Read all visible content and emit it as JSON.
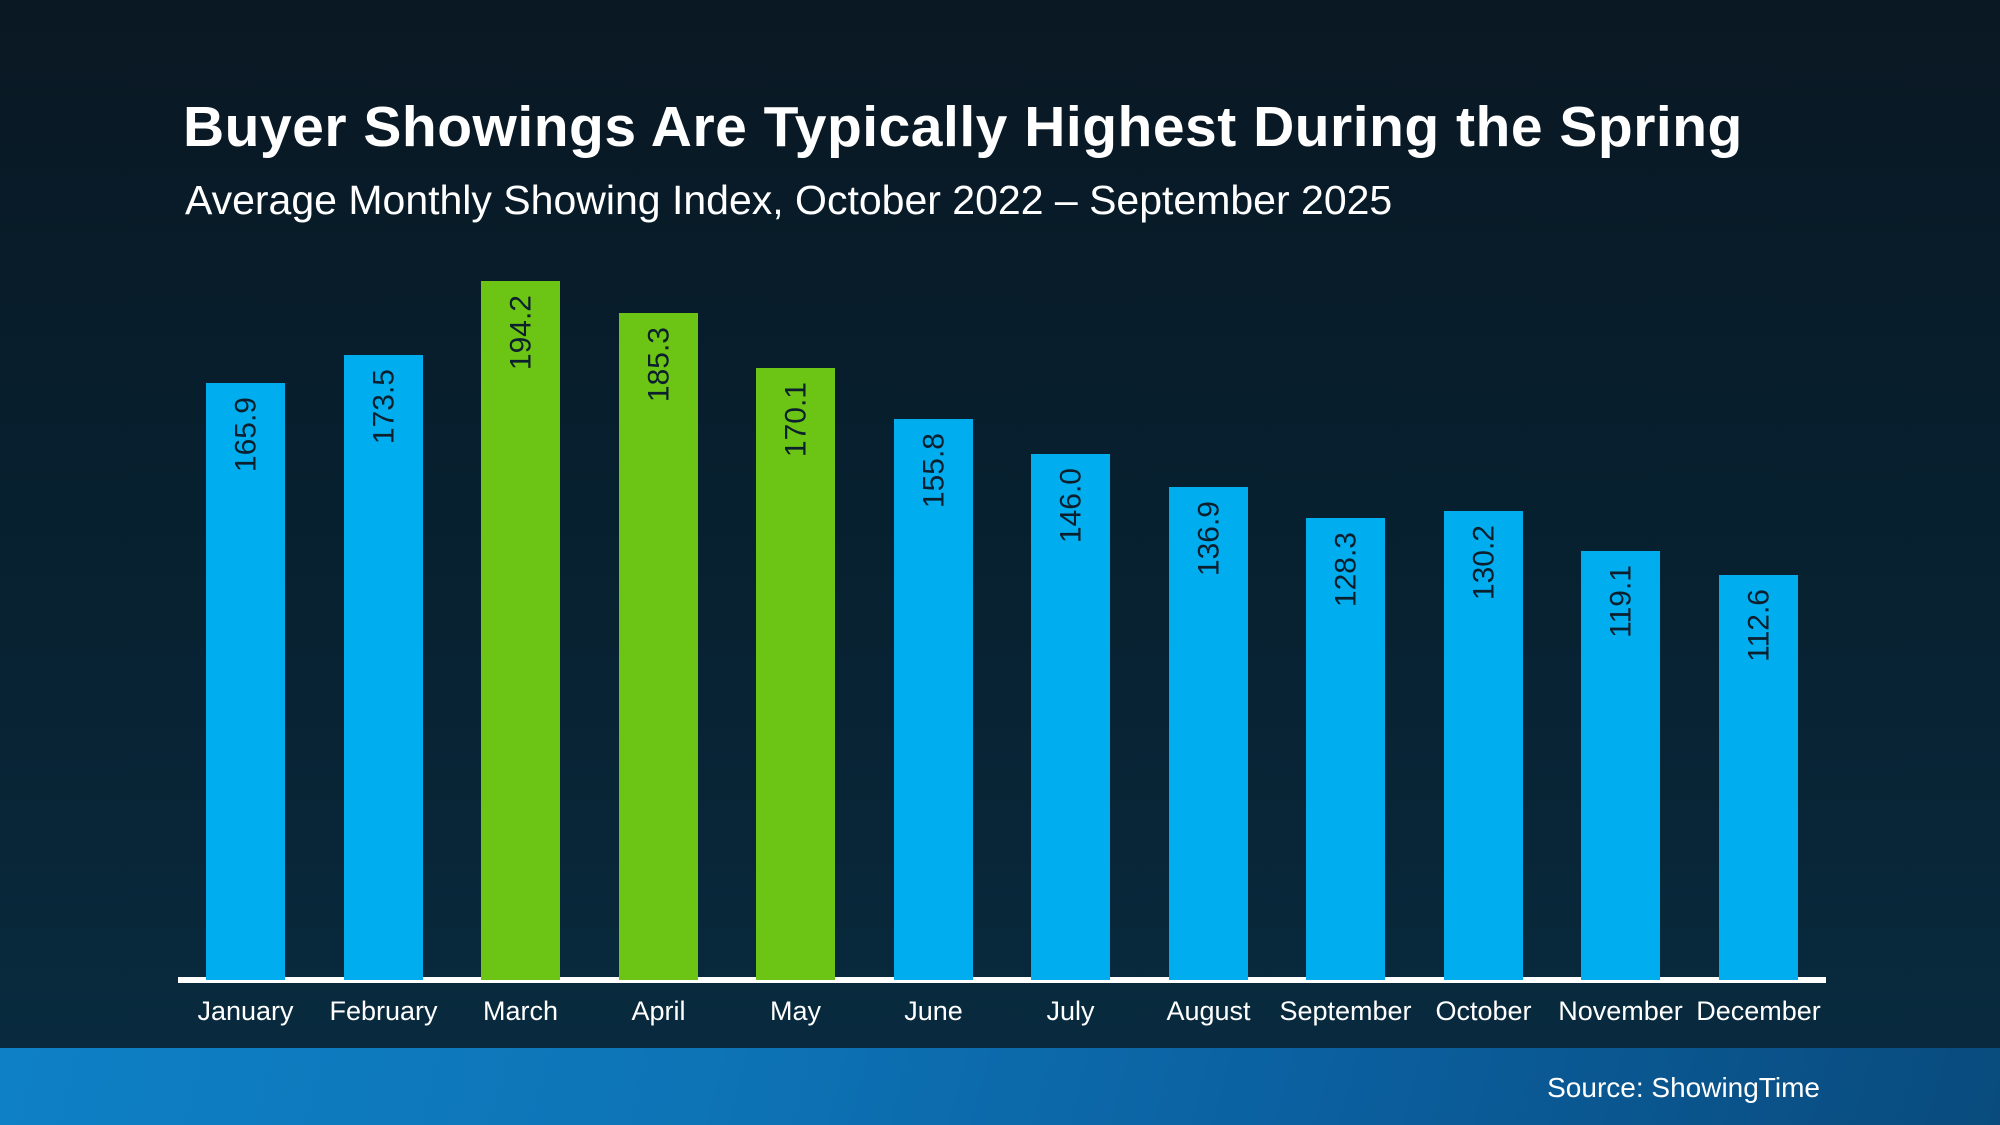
{
  "page": {
    "title": "Buyer Showings Are Typically Highest During the Spring",
    "subtitle": "Average Monthly Showing Index, October 2022 – September 2025"
  },
  "footer": {
    "source": "Source: ShowingTime"
  },
  "chart_data": {
    "type": "bar",
    "title": "Buyer Showings Are Typically Highest During the Spring",
    "subtitle": "Average Monthly Showing Index, October 2022 – September 2025",
    "categories": [
      "January",
      "February",
      "March",
      "April",
      "May",
      "June",
      "July",
      "August",
      "September",
      "October",
      "November",
      "December"
    ],
    "values": [
      165.9,
      173.5,
      194.2,
      185.3,
      170.1,
      155.8,
      146.0,
      136.9,
      128.3,
      130.2,
      119.1,
      112.6
    ],
    "value_labels": [
      "165.9",
      "173.5",
      "194.2",
      "185.3",
      "170.1",
      "155.8",
      "146.0",
      "136.9",
      "128.3",
      "130.2",
      "119.1",
      "112.6"
    ],
    "highlighted_categories": [
      "March",
      "April",
      "May"
    ],
    "ylim": [
      0,
      210
    ],
    "grid": "off",
    "legend": "none",
    "xlabel": "",
    "ylabel": "",
    "colors": {
      "bar_default": "#00aeef",
      "bar_highlight": "#6cc414",
      "value_label": "#0b1f2d",
      "axis_line": "#ffffff",
      "label_text": "#ffffff"
    }
  }
}
